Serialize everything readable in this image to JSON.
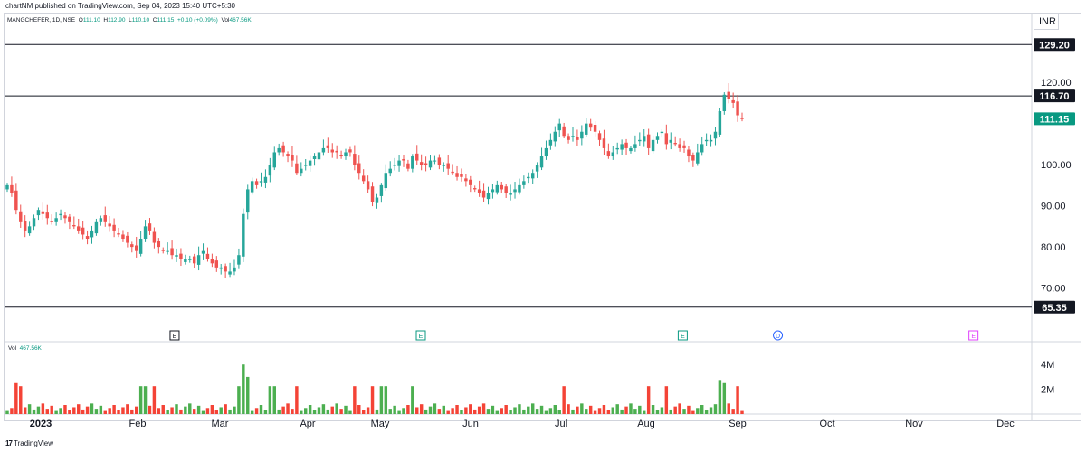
{
  "published_line": "chartNM published on TradingView.com, Sep 04, 2023 15:40 UTC+5:30",
  "legend": {
    "symbol": "MANGCHEFER, 1D, NSE",
    "open_label": "O",
    "open": "111.10",
    "high_label": "H",
    "high": "112.90",
    "low_label": "L",
    "low": "110.10",
    "close_label": "C",
    "close": "111.15",
    "change": "+0.10 (+0.09%)",
    "vol_label": "Vol",
    "vol": "467.56K"
  },
  "currency": "INR",
  "volume_pane": {
    "label": "Vol",
    "value": "467.56K"
  },
  "footer": {
    "logo": "17",
    "brand": "TradingView"
  },
  "colors": {
    "up": "#26a69a",
    "down": "#ef5350",
    "vol_up": "#4caf50",
    "vol_down": "#f44336",
    "price_tag": "#089981",
    "earnings_e": "#131722",
    "earnings_green": "#089981",
    "dividend": "#2962ff",
    "future_e": "#e040fb"
  },
  "chart_data": [
    {
      "type": "candlestick",
      "title": "",
      "ylim": [
        62,
        133
      ],
      "y_ticks": [
        "129.20",
        "120.00",
        "116.70",
        "111.15",
        "100.00",
        "90.00",
        "80.00",
        "70.00",
        "65.35"
      ],
      "grid": false,
      "horizontal_lines": [
        129.2,
        116.7,
        65.35
      ],
      "highlighted_labels": [
        {
          "value": "129.20",
          "style": "dark"
        },
        {
          "value": "116.70",
          "style": "dark"
        },
        {
          "value": "111.15",
          "style": "green"
        },
        {
          "value": "65.35",
          "style": "dark"
        }
      ],
      "x_ticks": [
        "2023",
        "Feb",
        "Mar",
        "Apr",
        "May",
        "Jun",
        "Jul",
        "Aug",
        "Sep",
        "Oct",
        "Nov",
        "Dec"
      ],
      "event_markers": [
        {
          "symbol": "E",
          "month_pos": 1.45,
          "kind": "earnings_e"
        },
        {
          "symbol": "E",
          "month_pos": 4.45,
          "kind": "earnings_green"
        },
        {
          "symbol": "E",
          "month_pos": 7.4,
          "kind": "earnings_green"
        },
        {
          "symbol": "D",
          "month_pos": 8.45,
          "kind": "dividend"
        },
        {
          "symbol": "E",
          "month_pos": 10.65,
          "kind": "future_e"
        }
      ],
      "close_series": [
        95,
        93,
        89,
        86,
        84,
        85,
        87,
        89,
        88,
        87,
        86,
        87,
        88,
        87,
        86,
        85,
        84,
        83,
        82,
        84,
        86,
        87,
        86,
        85,
        84,
        83,
        82,
        81,
        80,
        79,
        82,
        85,
        84,
        81,
        80,
        79,
        79,
        78,
        78,
        77,
        77,
        77,
        76,
        78,
        79,
        77,
        76,
        75,
        75,
        74,
        74,
        75,
        78,
        88,
        94,
        96,
        95,
        96,
        97,
        100,
        103,
        104,
        103,
        102,
        101,
        98,
        99,
        100,
        101,
        102,
        103,
        104,
        104,
        103,
        103,
        102,
        103,
        103,
        100,
        98,
        96,
        94,
        91,
        92,
        95,
        98,
        99,
        100,
        101,
        101,
        99,
        102,
        101,
        100,
        100,
        101,
        101,
        100,
        100,
        99,
        98,
        97,
        97,
        96,
        95,
        94,
        93,
        92,
        93,
        94,
        95,
        94,
        93,
        93,
        94,
        95,
        96,
        97,
        98,
        100,
        102,
        104,
        106,
        108,
        110,
        107,
        106,
        107,
        106,
        108,
        110,
        109,
        108,
        106,
        104,
        102,
        103,
        104,
        105,
        104,
        104,
        105,
        106,
        107,
        104,
        106,
        107,
        108,
        105,
        106,
        105,
        104,
        104,
        102,
        101,
        103,
        105,
        106,
        106,
        108,
        113,
        117,
        116,
        115,
        112,
        111.15
      ],
      "volume_max_m": 4.6,
      "volume_ticks": [
        "4M",
        "2M"
      ]
    }
  ]
}
